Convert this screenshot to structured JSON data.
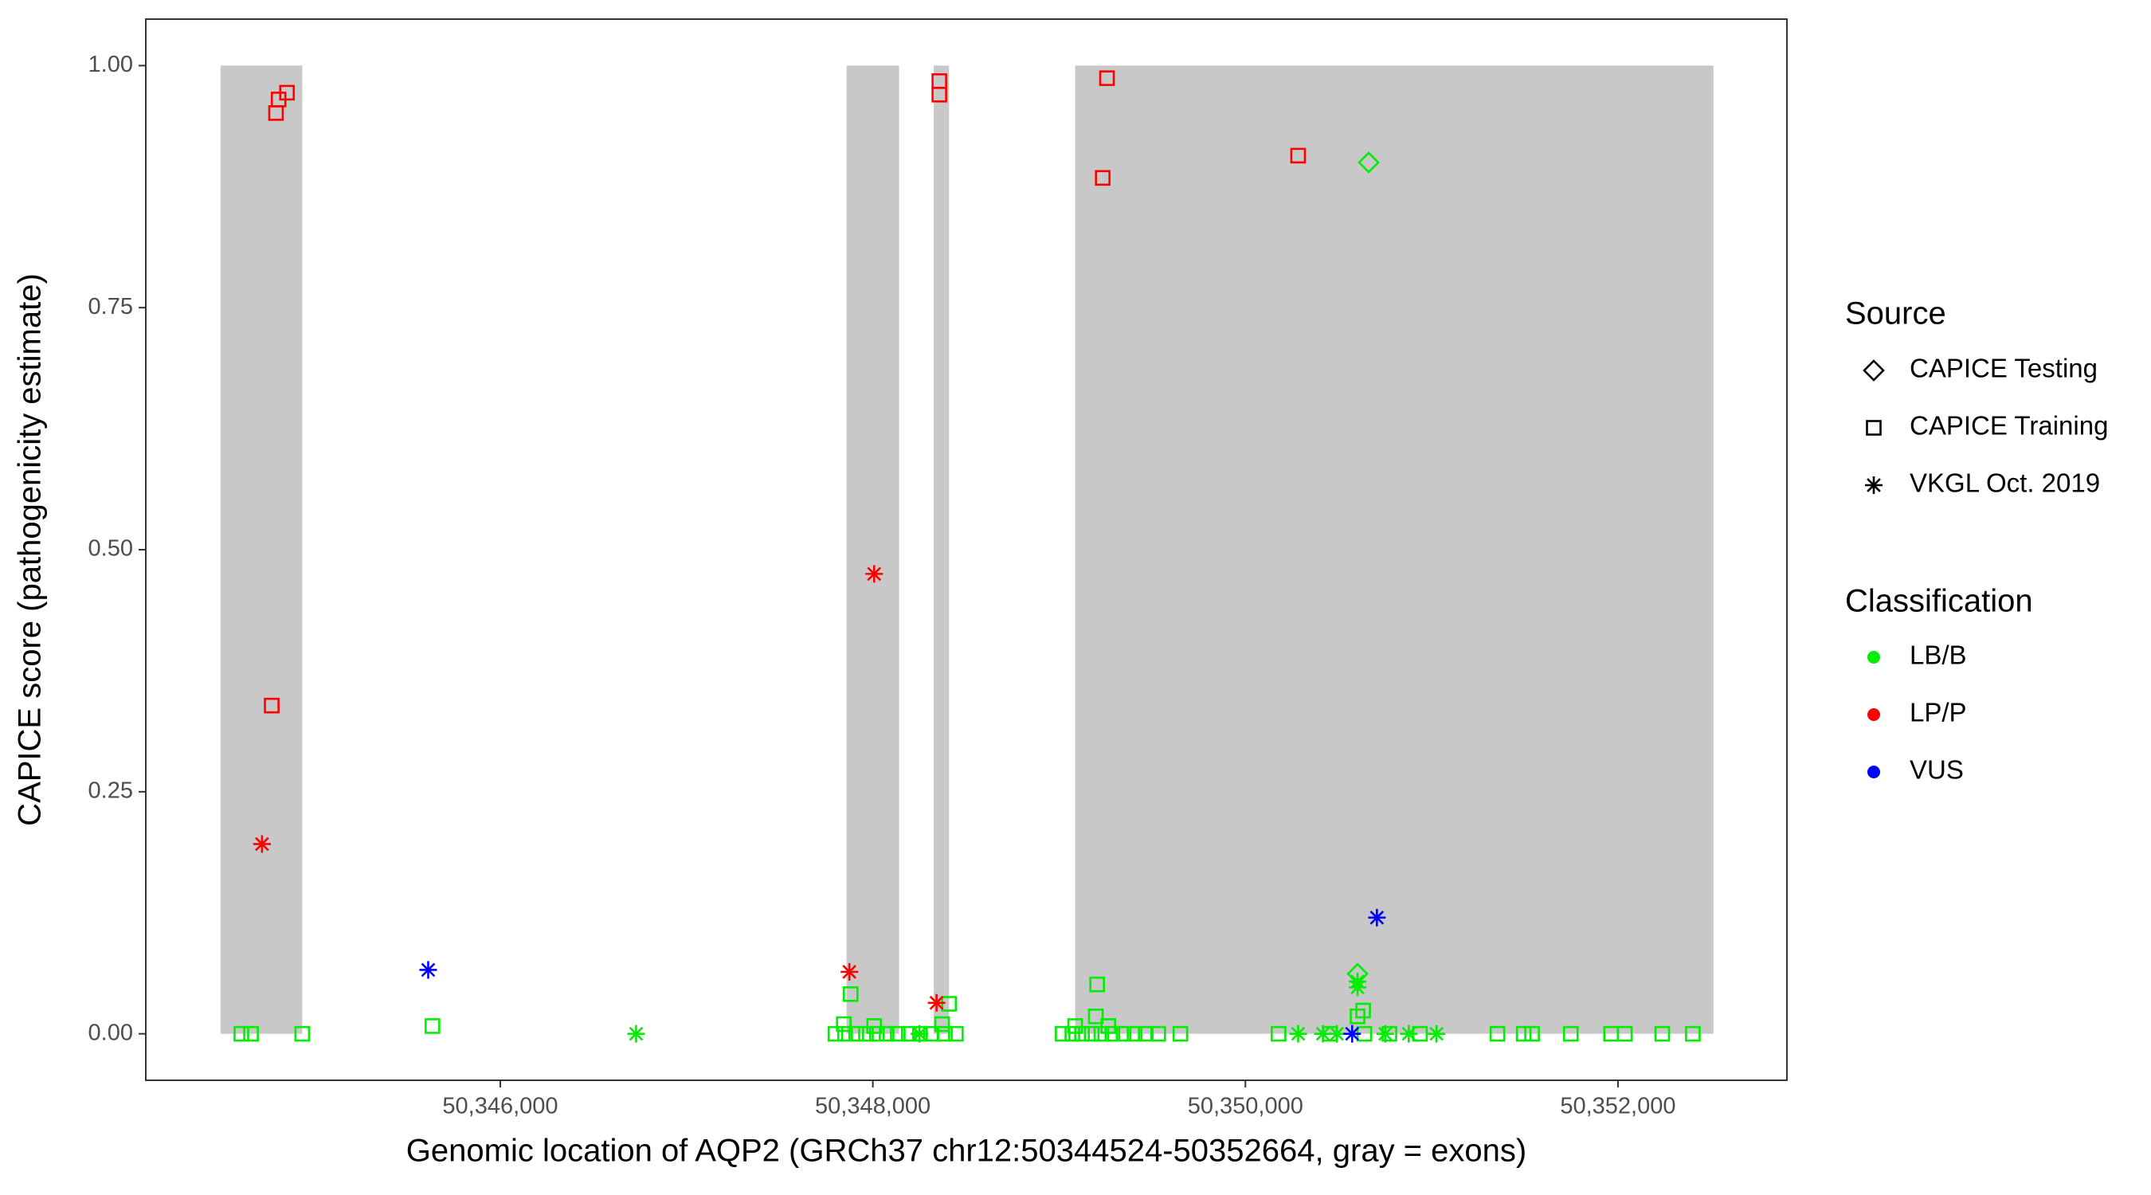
{
  "chart_data": {
    "type": "scatter",
    "x_label": "Genomic location of AQP2 (GRCh37 chr12:50344524-50352664, gray = exons)",
    "y_label": "CAPICE score (pathogenicity estimate)",
    "xlim": [
      50344097,
      50352907
    ],
    "ylim": [
      -0.048,
      1.048
    ],
    "xticks": [
      {
        "value": 50346000,
        "label": "50,346,000"
      },
      {
        "value": 50348000,
        "label": "50,348,000"
      },
      {
        "value": 50350000,
        "label": "50,350,000"
      },
      {
        "value": 50352000,
        "label": "50,352,000"
      }
    ],
    "yticks": [
      {
        "value": 0,
        "label": "0.00"
      },
      {
        "value": 0.25,
        "label": "0.25"
      },
      {
        "value": 0.5,
        "label": "0.50"
      },
      {
        "value": 0.75,
        "label": "0.75"
      },
      {
        "value": 1,
        "label": "1.00"
      }
    ],
    "exon_color": "#c8c8c8",
    "exons": [
      {
        "start": 50344498,
        "end": 50344937
      },
      {
        "start": 50347859,
        "end": 50348141
      },
      {
        "start": 50348327,
        "end": 50348409
      },
      {
        "start": 50349086,
        "end": 50352513
      }
    ],
    "legend": {
      "shape": {
        "title": "Source",
        "items": [
          {
            "name": "CAPICE Testing",
            "shape": "diamond"
          },
          {
            "name": "CAPICE Training",
            "shape": "square"
          },
          {
            "name": "VKGL Oct. 2019",
            "shape": "star"
          }
        ]
      },
      "color": {
        "title": "Classification",
        "items": [
          {
            "name": "LB/B",
            "color": "#00ee00"
          },
          {
            "name": "LP/P",
            "color": "#ff0000"
          },
          {
            "name": "VUS",
            "color": "#0000ff"
          }
        ]
      }
    },
    "series": [
      {
        "source": "CAPICE Training",
        "classification": "LB/B",
        "x": [
          50344610,
          50344662,
          50344937,
          50347799,
          50347851,
          50347911,
          50347963,
          50348022,
          50348074,
          50348134,
          50348193,
          50348253,
          50348312,
          50348387,
          50348446,
          50349019,
          50349071,
          50349123,
          50349175,
          50349227,
          50349286,
          50349346,
          50349405,
          50349465,
          50349532,
          50349651,
          50350178,
          50350454,
          50350639,
          50350773,
          50350937,
          50351353,
          50351494,
          50351539,
          50351747,
          50351963,
          50352037,
          50352238,
          50352402,
          50345636,
          50347881,
          50347844,
          50348007,
          50348409,
          50348372,
          50349204,
          50349197,
          50349264,
          50349086,
          50350602,
          50350632
        ],
        "y": [
          0,
          0,
          0,
          0,
          0,
          0,
          0,
          0,
          0,
          0,
          0,
          0,
          0,
          0,
          0,
          0,
          0,
          0,
          0,
          0,
          0,
          0,
          0,
          0,
          0,
          0,
          0,
          0,
          0,
          0,
          0,
          0,
          0,
          0,
          0,
          0,
          0,
          0,
          0,
          0.008,
          0.041,
          0.01,
          0.008,
          0.031,
          0.01,
          0.051,
          0.018,
          0.008,
          0.008,
          0.018,
          0.024
        ]
      },
      {
        "source": "CAPICE Training",
        "classification": "LP/P",
        "x": [
          50344796,
          50344810,
          50344855,
          50344773,
          50348357,
          50348357,
          50349257,
          50349234,
          50350283
        ],
        "y": [
          0.951,
          0.965,
          0.972,
          0.339,
          0.984,
          0.97,
          0.987,
          0.884,
          0.907
        ]
      },
      {
        "source": "CAPICE Testing",
        "classification": "LB/B",
        "x": [
          50350662,
          50350602
        ],
        "y": [
          0.9,
          0.062
        ]
      },
      {
        "source": "VKGL Oct. 2019",
        "classification": "LB/B",
        "x": [
          50346729,
          50348250,
          50350283,
          50350416,
          50350491,
          50350751,
          50350877,
          50351026,
          50350602,
          50350602
        ],
        "y": [
          0,
          0,
          0,
          0,
          0,
          0,
          0,
          0,
          0.054,
          0.048
        ]
      },
      {
        "source": "VKGL Oct. 2019",
        "classification": "LP/P",
        "x": [
          50344721,
          50348007,
          50347874,
          50348342
        ],
        "y": [
          0.196,
          0.475,
          0.064,
          0.032
        ]
      },
      {
        "source": "VKGL Oct. 2019",
        "classification": "VUS",
        "x": [
          50345613,
          50350706,
          50350573
        ],
        "y": [
          0.066,
          0.12,
          0
        ]
      }
    ]
  }
}
